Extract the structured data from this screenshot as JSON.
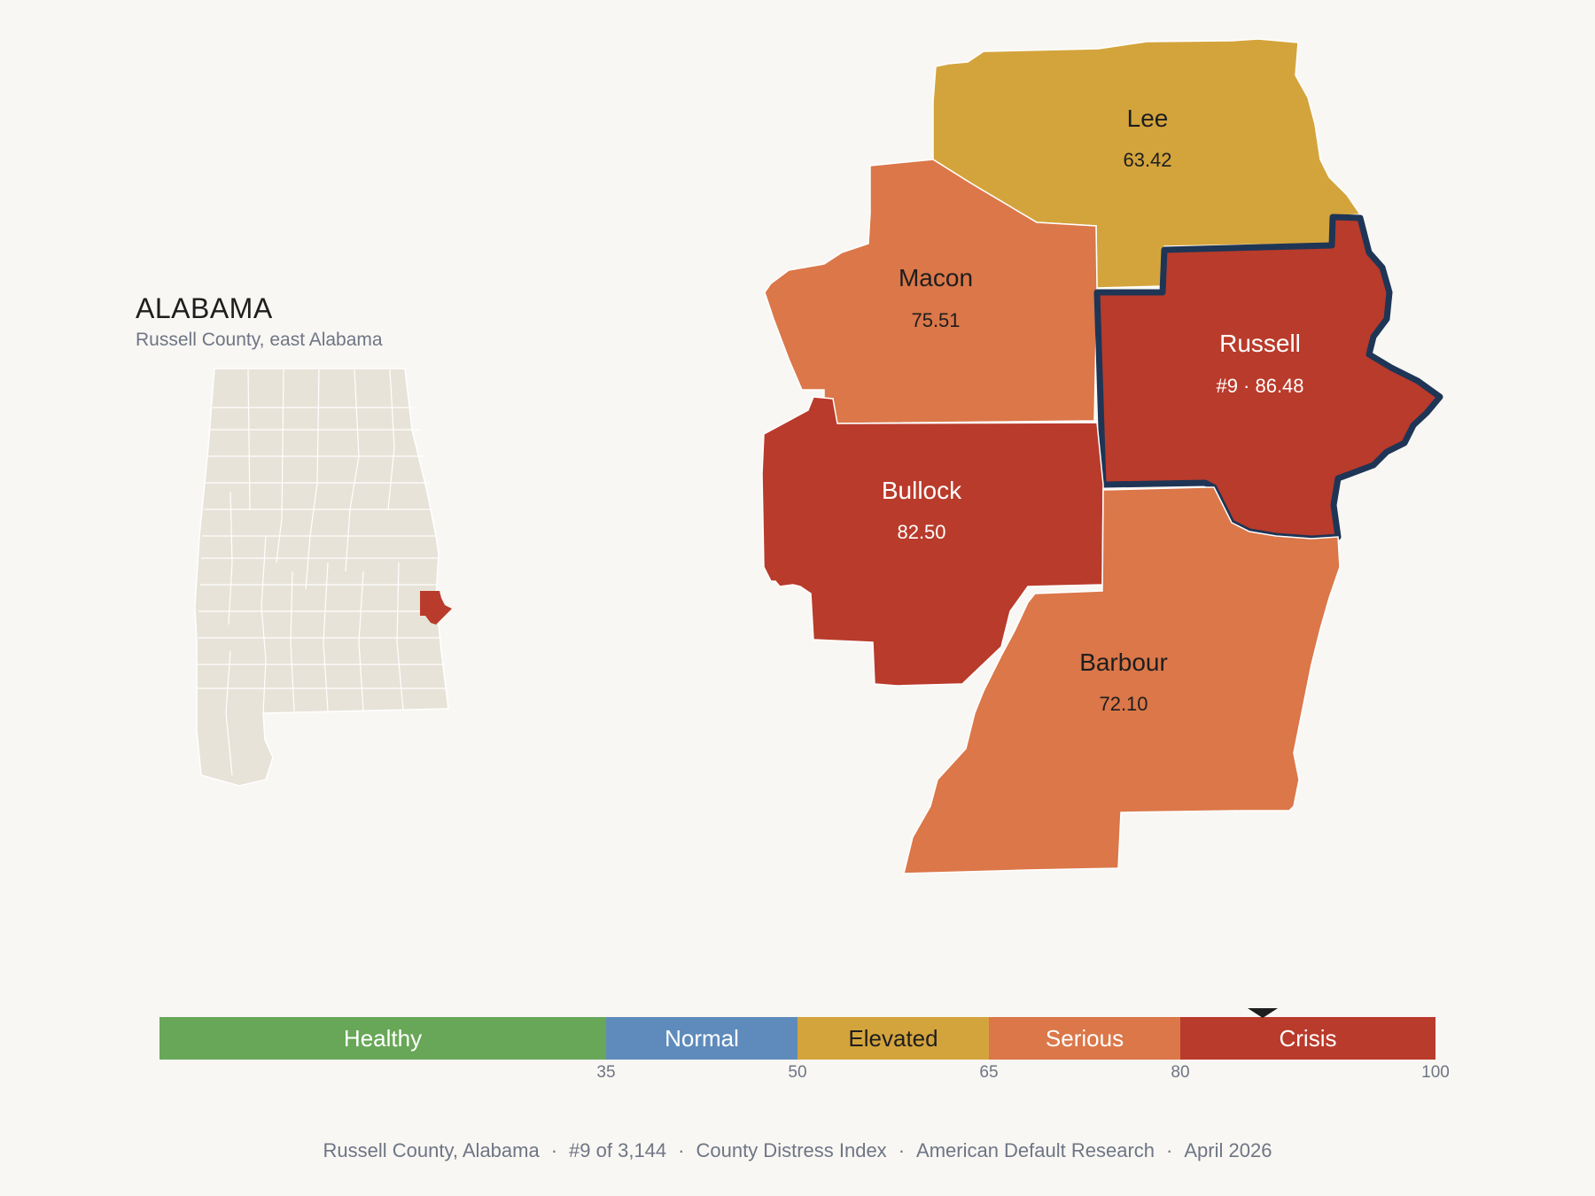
{
  "state": {
    "title": "ALABAMA",
    "subtitle": "Russell County, east Alabama"
  },
  "counties": [
    {
      "name": "Lee",
      "value": "63.42",
      "category": "Elevated"
    },
    {
      "name": "Macon",
      "value": "75.51",
      "category": "Serious"
    },
    {
      "name": "Russell",
      "value": "#9 · 86.48",
      "category": "Crisis",
      "highlighted": true
    },
    {
      "name": "Bullock",
      "value": "82.50",
      "category": "Crisis"
    },
    {
      "name": "Barbour",
      "value": "72.10",
      "category": "Serious"
    }
  ],
  "scale": {
    "segments": [
      {
        "label": "Healthy",
        "from": 0,
        "to": 35,
        "color": "#68a758",
        "text_color": "#ffffff"
      },
      {
        "label": "Normal",
        "from": 35,
        "to": 50,
        "color": "#5e8bbb",
        "text_color": "#ffffff"
      },
      {
        "label": "Elevated",
        "from": 50,
        "to": 65,
        "color": "#d4a43c",
        "text_color": "#1e1e1e"
      },
      {
        "label": "Serious",
        "from": 65,
        "to": 80,
        "color": "#db7749",
        "text_color": "#ffffff"
      },
      {
        "label": "Crisis",
        "from": 80,
        "to": 100,
        "color": "#b93b2b",
        "text_color": "#ffffff"
      }
    ],
    "ticks": [
      "35",
      "50",
      "65",
      "80",
      "100"
    ],
    "marker_value": 86.48
  },
  "colors": {
    "background": "#f9f7f3",
    "inset_fill": "#e8e3d8",
    "highlight_border": "#1e3556"
  },
  "footer": {
    "items": [
      "Russell County, Alabama",
      "#9 of 3,144",
      "County Distress Index",
      "American Default Research",
      "April 2026"
    ]
  }
}
